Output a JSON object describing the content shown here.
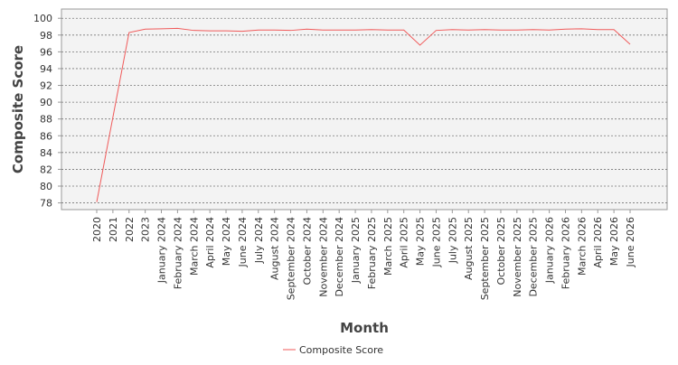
{
  "chart_data": {
    "type": "line",
    "x_label": "Month",
    "y_label": "Composite Score",
    "categories": [
      "2020",
      "2021",
      "2022",
      "2023",
      "January 2024",
      "February 2024",
      "March 2024",
      "April 2024",
      "May 2024",
      "June 2024",
      "July 2024",
      "August 2024",
      "September 2024",
      "October 2024",
      "November 2024",
      "December 2024",
      "January 2025",
      "February 2025",
      "March 2025",
      "April 2025",
      "May 2025",
      "June 2025",
      "July 2025",
      "August 2025",
      "September 2025",
      "October 2025",
      "November 2025",
      "December 2025",
      "January 2026",
      "February 2026",
      "March 2026",
      "April 2026",
      "May 2026",
      "June 2026"
    ],
    "series": [
      {
        "name": "Composite Score",
        "color": "#f05a5a",
        "values": [
          78.1,
          88.2,
          98.3,
          98.7,
          98.75,
          98.8,
          98.55,
          98.5,
          98.5,
          98.45,
          98.6,
          98.6,
          98.55,
          98.7,
          98.6,
          98.6,
          98.6,
          98.65,
          98.6,
          98.6,
          96.8,
          98.55,
          98.65,
          98.6,
          98.65,
          98.6,
          98.6,
          98.65,
          98.6,
          98.7,
          98.75,
          98.65,
          98.65,
          96.9
        ]
      }
    ],
    "ylim": [
      77.2,
      101.1
    ],
    "yticks": [
      78,
      80,
      82,
      84,
      86,
      88,
      90,
      92,
      94,
      96,
      98,
      100
    ],
    "grid": true,
    "legend": "bottom"
  }
}
